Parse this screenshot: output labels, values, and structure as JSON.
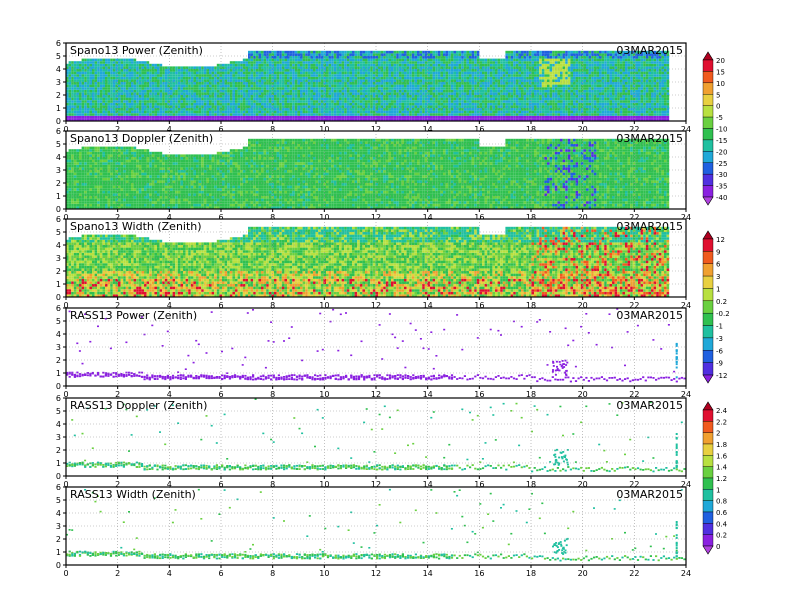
{
  "figure": {
    "date": "03MAR2015",
    "x_ticks": [
      0,
      2,
      4,
      6,
      8,
      10,
      12,
      14,
      16,
      18,
      20,
      22,
      24
    ],
    "y_ticks": [
      0,
      1,
      2,
      3,
      4,
      5,
      6
    ]
  },
  "chart_data": [
    {
      "type": "heatmap",
      "title": "Spano13 Power (Zenith)",
      "annotation": "03MAR2015",
      "xlim": [
        0,
        24
      ],
      "ylim": [
        0,
        6
      ],
      "grid": true,
      "colorbar": "power"
    },
    {
      "type": "heatmap",
      "title": "Spano13 Doppler (Zenith)",
      "annotation": "03MAR2015",
      "xlim": [
        0,
        24
      ],
      "ylim": [
        0,
        6
      ],
      "grid": true,
      "colorbar": "power"
    },
    {
      "type": "heatmap",
      "title": "Spano13 Width (Zenith)",
      "annotation": "03MAR2015",
      "xlim": [
        0,
        24
      ],
      "ylim": [
        0,
        6
      ],
      "grid": true,
      "colorbar": "width"
    },
    {
      "type": "heatmap",
      "title": "RASS13 Power (Zenith)",
      "annotation": "03MAR2015",
      "xlim": [
        0,
        24
      ],
      "ylim": [
        0,
        6
      ],
      "grid": true,
      "colorbar": "width"
    },
    {
      "type": "heatmap",
      "title": "RASS13 Doppler (Zenith)",
      "annotation": "03MAR2015",
      "xlim": [
        0,
        24
      ],
      "ylim": [
        0,
        6
      ],
      "grid": true,
      "colorbar": "rass"
    },
    {
      "type": "heatmap",
      "title": "RASS13 Width (Zenith)",
      "annotation": "03MAR2015",
      "xlim": [
        0,
        24
      ],
      "ylim": [
        0,
        6
      ],
      "grid": true,
      "colorbar": "rass"
    }
  ],
  "colorbars": {
    "power": {
      "labels": [
        "20",
        "15",
        "10",
        "5",
        "0",
        "-5",
        "-10",
        "-15",
        "-20",
        "-25",
        "-30",
        "-35",
        "-40"
      ],
      "colors": [
        "#b00020",
        "#e01030",
        "#f05a1e",
        "#f0a030",
        "#e8d040",
        "#b8e040",
        "#6ad040",
        "#30c050",
        "#20c0a0",
        "#20a8d8",
        "#2060e0",
        "#5030e0",
        "#8a20e0",
        "#b040e0"
      ]
    },
    "width": {
      "labels": [
        "12",
        "9",
        "6",
        "3",
        "1",
        "0.2",
        "-0.2",
        "-1",
        "-3",
        "-6",
        "-9",
        "-12"
      ],
      "colors": [
        "#b00020",
        "#e01030",
        "#f05a1e",
        "#f0a030",
        "#e8d040",
        "#b8e040",
        "#6ad040",
        "#30c050",
        "#20c0a0",
        "#20a8d8",
        "#2060e0",
        "#5030e0",
        "#8a20e0"
      ]
    },
    "rass": {
      "labels": [
        "2.4",
        "2.2",
        "2",
        "1.8",
        "1.6",
        "1.4",
        "1.2",
        "1",
        "0.8",
        "0.6",
        "0.4",
        "0.2",
        "0"
      ],
      "colors": [
        "#b00020",
        "#e01030",
        "#f05a1e",
        "#f0a030",
        "#e8d040",
        "#b8e040",
        "#6ad040",
        "#30c050",
        "#20c0a0",
        "#20a8d8",
        "#2060e0",
        "#5030e0",
        "#8a20e0",
        "#b040e0"
      ]
    }
  }
}
